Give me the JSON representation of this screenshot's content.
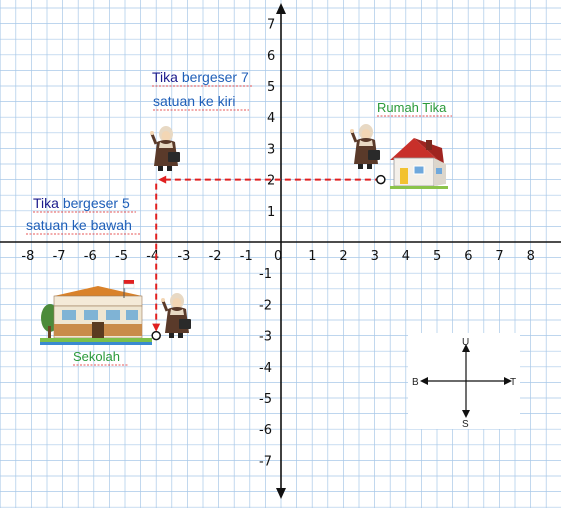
{
  "axes": {
    "x_ticks": [
      -8,
      -7,
      -6,
      -5,
      -4,
      -3,
      -2,
      -1,
      0,
      1,
      2,
      3,
      4,
      5,
      6,
      7,
      8
    ],
    "y_ticks": [
      -7,
      -6,
      -5,
      -4,
      -3,
      -2,
      -1,
      1,
      2,
      3,
      4,
      5,
      6,
      7
    ]
  },
  "labels": {
    "move_left_l1_a": "Tika",
    "move_left_l1_b": " bergeser 7",
    "move_left_l2": "satuan ke kiri",
    "move_down_l1_a": "Tika",
    "move_down_l1_b": " bergeser 5",
    "move_down_l2": "satuan ke bawah",
    "house": "Rumah Tika",
    "school": "Sekolah"
  },
  "points": {
    "house": {
      "x": 3.2,
      "y": 2
    },
    "corner": {
      "x": -4,
      "y": 2
    },
    "school": {
      "x": -4,
      "y": -3
    }
  },
  "compass": {
    "north": "U",
    "south": "S",
    "east": "T",
    "west": "B"
  },
  "colors": {
    "path": "#e02020",
    "grid": "#a8c8e8",
    "blue_text": "#1f5fb8",
    "green_text": "#2a9a3a"
  },
  "icons": [
    "house-icon",
    "school-building-icon",
    "girl-character-icon",
    "compass-icon"
  ]
}
